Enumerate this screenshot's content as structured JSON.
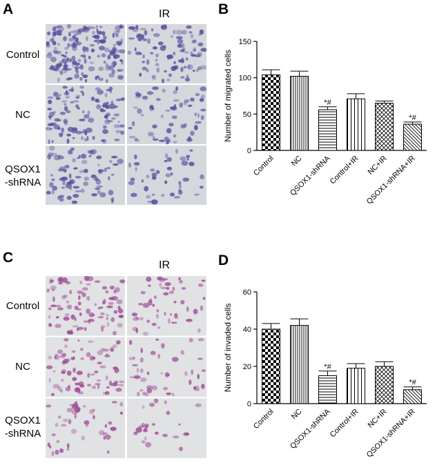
{
  "colors": {
    "migration_stain_dark": "#5a4f9e",
    "migration_bg": "#d4d7dc",
    "invasion_stain": "#a04c96",
    "invasion_bg": "#e0e2e4"
  },
  "panels": [
    {
      "letter": "A",
      "ir_label": "IR",
      "row_labels": [
        "Control",
        "NC",
        "QSOX1\n-shRNA"
      ]
    },
    {
      "letter": "C",
      "ir_label": "IR",
      "row_labels": [
        "Control",
        "NC",
        "QSOX1\n-shRNA"
      ]
    }
  ],
  "chart_letters": [
    "B",
    "D"
  ],
  "chart_data": [
    {
      "type": "bar",
      "categories": [
        "Control",
        "NC",
        "QSOX1-shRNA",
        "Control+IR",
        "NC+IR",
        "QSOX1-shRNA+IR"
      ],
      "values": [
        104,
        102,
        56,
        71,
        65,
        36
      ],
      "errors": [
        7,
        7,
        4,
        7,
        3,
        3
      ],
      "annotations": [
        "",
        "",
        "*#",
        "",
        "",
        "*#"
      ],
      "ylabel": "Number of migrated cells",
      "ylim": [
        0,
        150
      ],
      "yticks": [
        0,
        50,
        100,
        150
      ],
      "patterns": [
        "checker",
        "vertical-dense",
        "horizontal",
        "vertical",
        "diag-cross",
        "diagonal"
      ]
    },
    {
      "type": "bar",
      "categories": [
        "Control",
        "NC",
        "QSOX1-shRNA",
        "Control+IR",
        "NC+IR",
        "QSOX1-shRNA+IR"
      ],
      "values": [
        40,
        42,
        15,
        19,
        20,
        7.5
      ],
      "errors": [
        3,
        3.5,
        2.5,
        2.5,
        2.5,
        1.5
      ],
      "annotations": [
        "",
        "",
        "*#",
        "",
        "",
        "*#"
      ],
      "ylabel": "Number of invaded cells",
      "ylim": [
        0,
        60
      ],
      "yticks": [
        0,
        20,
        40,
        60
      ],
      "patterns": [
        "checker",
        "vertical-dense",
        "horizontal",
        "vertical",
        "diag-cross",
        "diagonal"
      ]
    }
  ]
}
